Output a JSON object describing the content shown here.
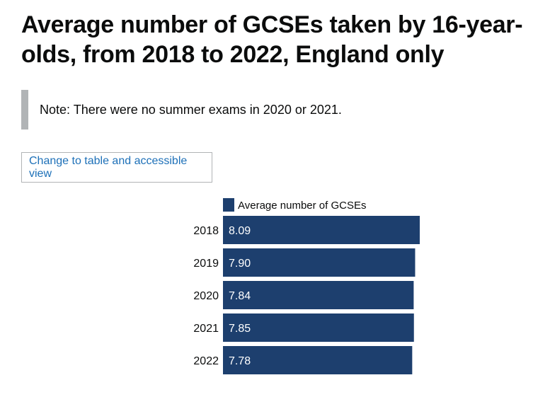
{
  "page": {
    "title": "Average number of GCSEs taken by 16-year-olds, from 2018 to 2022, England only",
    "note": "Note: There were no summer exams in 2020 or 2021.",
    "view_button_label": "Change to table and accessible view"
  },
  "colors": {
    "bar": "#1d3f6e",
    "note_border": "#b1b4b6",
    "link": "#1d70b8"
  },
  "chart_data": {
    "type": "bar",
    "orientation": "horizontal",
    "categories": [
      "2018",
      "2019",
      "2020",
      "2021",
      "2022"
    ],
    "series": [
      {
        "name": "Average number of GCSEs",
        "values": [
          8.09,
          7.9,
          7.84,
          7.85,
          7.78
        ],
        "labels": [
          "8.09",
          "7.90",
          "7.84",
          "7.85",
          "7.78"
        ]
      }
    ],
    "xlim": [
      0,
      8.09
    ],
    "legend_position": "top",
    "grid": false,
    "data_labels": "inside-start"
  }
}
